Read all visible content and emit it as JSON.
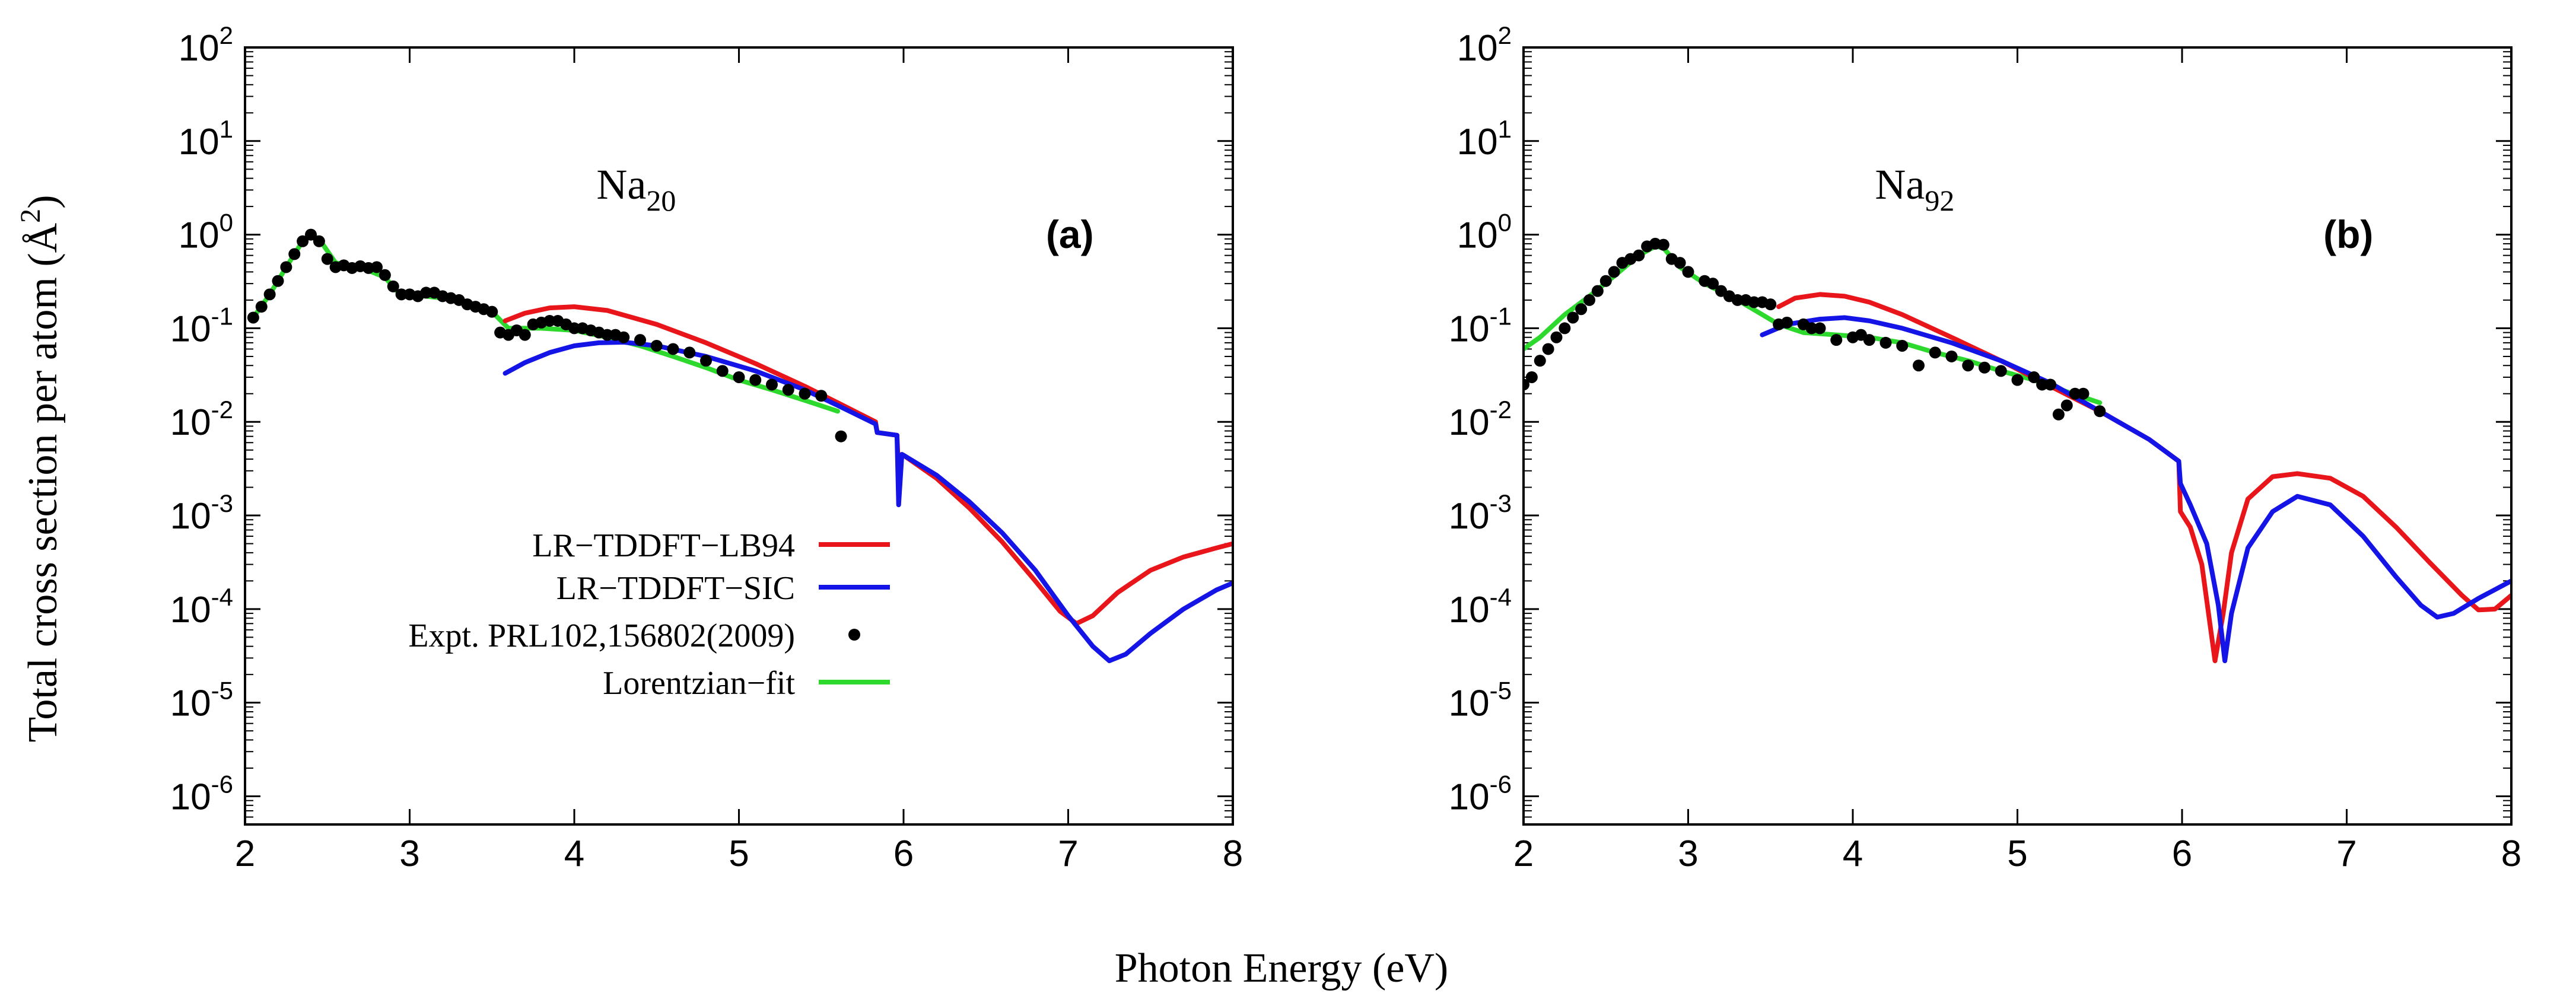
{
  "figure": {
    "shared_xlabel": "Photon Energy (eV)",
    "shared_ylabel_text": "Total cross section per atom (",
    "shared_ylabel_unit": "Å",
    "shared_ylabel_unit_sup": "2",
    "shared_ylabel_close": ")"
  },
  "colors": {
    "lb94": "#e8161a",
    "sic": "#1414e6",
    "expt": "#000000",
    "fit": "#2ed92e",
    "axis": "#000000",
    "background": "#ffffff"
  },
  "chart_data": [
    {
      "id": "a",
      "type": "line",
      "yscale": "log",
      "xlim": [
        2,
        8
      ],
      "ylim": [
        5e-07,
        100
      ],
      "xticks": [
        2,
        3,
        4,
        5,
        6,
        7,
        8
      ],
      "ytick_exponents": [
        -6,
        -5,
        -4,
        -3,
        -2,
        -1,
        0,
        1,
        2
      ],
      "ytick_base": "10",
      "grid": false,
      "panel_label": "(a)",
      "cluster_label": {
        "base": "Na",
        "sub": "20"
      },
      "legend": {
        "placement": "lower-left",
        "entries": [
          {
            "label": "LR−TDDFT−LB94",
            "series": "lb94",
            "kind": "line"
          },
          {
            "label": "LR−TDDFT−SIC",
            "series": "sic",
            "kind": "line"
          },
          {
            "label": "Expt. PRL102,156802(2009)",
            "series": "expt",
            "kind": "point"
          },
          {
            "label": "Lorentzian−fit",
            "series": "fit",
            "kind": "line"
          }
        ]
      },
      "series": [
        {
          "name": "LR−TDDFT−LB94",
          "key": "lb94",
          "x": [
            3.58,
            3.7,
            3.85,
            4.0,
            4.2,
            4.5,
            4.8,
            5.1,
            5.4,
            5.6,
            5.83,
            5.84,
            5.96,
            5.965,
            6.0,
            6.2,
            6.4,
            6.6,
            6.8,
            6.95,
            7.05,
            7.15,
            7.3,
            7.5,
            7.7,
            7.9,
            8.0
          ],
          "y": [
            0.12,
            0.145,
            0.165,
            0.17,
            0.155,
            0.11,
            0.07,
            0.042,
            0.024,
            0.016,
            0.01,
            0.0077,
            0.0072,
            0.0045,
            0.0044,
            0.0025,
            0.0012,
            0.00052,
            0.0002,
            9.5e-05,
            7e-05,
            8.5e-05,
            0.00015,
            0.00026,
            0.00036,
            0.00045,
            0.0005
          ]
        },
        {
          "name": "LR−TDDFT−SIC",
          "key": "sic",
          "x": [
            3.58,
            3.7,
            3.85,
            4.0,
            4.15,
            4.3,
            4.5,
            4.8,
            5.1,
            5.4,
            5.6,
            5.83,
            5.84,
            5.96,
            5.97,
            5.99,
            6.0,
            6.2,
            6.4,
            6.6,
            6.8,
            7.0,
            7.15,
            7.25,
            7.35,
            7.5,
            7.7,
            7.9,
            8.0
          ],
          "y": [
            0.033,
            0.043,
            0.055,
            0.065,
            0.07,
            0.071,
            0.065,
            0.05,
            0.035,
            0.022,
            0.015,
            0.0095,
            0.0077,
            0.0072,
            0.0013,
            0.0045,
            0.0044,
            0.0027,
            0.0014,
            0.00065,
            0.00026,
            8.5e-05,
            4e-05,
            2.8e-05,
            3.3e-05,
            5.5e-05,
            0.0001,
            0.00016,
            0.00019
          ]
        },
        {
          "name": "Expt. PRL102,156802(2009)",
          "key": "expt",
          "marker": "circle",
          "x": [
            2.05,
            2.1,
            2.15,
            2.2,
            2.25,
            2.3,
            2.35,
            2.4,
            2.45,
            2.5,
            2.55,
            2.6,
            2.65,
            2.7,
            2.75,
            2.8,
            2.85,
            2.9,
            2.95,
            3.0,
            3.05,
            3.1,
            3.15,
            3.2,
            3.25,
            3.3,
            3.35,
            3.4,
            3.45,
            3.5,
            3.55,
            3.6,
            3.65,
            3.7,
            3.75,
            3.8,
            3.85,
            3.9,
            3.95,
            4.0,
            4.05,
            4.1,
            4.15,
            4.2,
            4.25,
            4.3,
            4.4,
            4.5,
            4.6,
            4.7,
            4.8,
            4.9,
            5.0,
            5.1,
            5.2,
            5.3,
            5.4,
            5.5,
            5.62
          ],
          "y": [
            0.13,
            0.17,
            0.23,
            0.32,
            0.45,
            0.62,
            0.85,
            1.0,
            0.85,
            0.55,
            0.45,
            0.47,
            0.44,
            0.46,
            0.44,
            0.45,
            0.37,
            0.28,
            0.23,
            0.23,
            0.22,
            0.24,
            0.24,
            0.22,
            0.21,
            0.2,
            0.18,
            0.17,
            0.16,
            0.15,
            0.09,
            0.085,
            0.095,
            0.085,
            0.11,
            0.115,
            0.12,
            0.12,
            0.11,
            0.1,
            0.1,
            0.095,
            0.09,
            0.085,
            0.085,
            0.08,
            0.075,
            0.065,
            0.06,
            0.055,
            0.045,
            0.035,
            0.03,
            0.028,
            0.025,
            0.022,
            0.02,
            0.019,
            0.007
          ]
        },
        {
          "name": "Lorentzian−fit",
          "key": "fit",
          "x": [
            2.05,
            2.15,
            2.25,
            2.35,
            2.4,
            2.45,
            2.55,
            2.7,
            2.85,
            2.95,
            3.1,
            3.3,
            3.5,
            3.6,
            3.8,
            4.0,
            4.2,
            4.4,
            4.6,
            4.8,
            5.0,
            5.2,
            5.4,
            5.6
          ],
          "y": [
            0.13,
            0.23,
            0.45,
            0.85,
            1.0,
            0.9,
            0.5,
            0.45,
            0.35,
            0.22,
            0.22,
            0.2,
            0.15,
            0.1,
            0.1,
            0.095,
            0.08,
            0.065,
            0.05,
            0.038,
            0.028,
            0.022,
            0.017,
            0.013
          ]
        }
      ]
    },
    {
      "id": "b",
      "type": "line",
      "yscale": "log",
      "xlim": [
        2,
        8
      ],
      "ylim": [
        5e-07,
        100
      ],
      "xticks": [
        2,
        3,
        4,
        5,
        6,
        7,
        8
      ],
      "ytick_exponents": [
        -6,
        -5,
        -4,
        -3,
        -2,
        -1,
        0,
        1,
        2
      ],
      "ytick_base": "10",
      "grid": false,
      "panel_label": "(b)",
      "cluster_label": {
        "base": "Na",
        "sub": "92"
      },
      "series": [
        {
          "name": "LR−TDDFT−LB94",
          "key": "lb94",
          "x": [
            3.55,
            3.65,
            3.8,
            3.95,
            4.1,
            4.3,
            4.6,
            4.9,
            5.2,
            5.5,
            5.8,
            5.98,
            5.99,
            6.05,
            6.12,
            6.2,
            6.25,
            6.3,
            6.4,
            6.55,
            6.7,
            6.9,
            7.1,
            7.3,
            7.5,
            7.7,
            7.8,
            7.9,
            8.0
          ],
          "y": [
            0.17,
            0.21,
            0.23,
            0.22,
            0.19,
            0.14,
            0.08,
            0.045,
            0.024,
            0.013,
            0.0065,
            0.0038,
            0.0011,
            0.00075,
            0.0003,
            2.8e-05,
            9e-05,
            0.0004,
            0.0015,
            0.0026,
            0.0028,
            0.0025,
            0.0016,
            0.00075,
            0.00032,
            0.00014,
            9.8e-05,
            0.0001,
            0.00014
          ]
        },
        {
          "name": "LR−TDDFT−SIC",
          "key": "sic",
          "x": [
            3.45,
            3.6,
            3.8,
            3.95,
            4.1,
            4.3,
            4.6,
            4.9,
            5.2,
            5.5,
            5.8,
            5.98,
            5.99,
            6.05,
            6.15,
            6.22,
            6.26,
            6.3,
            6.4,
            6.55,
            6.7,
            6.9,
            7.1,
            7.3,
            7.45,
            7.55,
            7.65,
            7.8,
            8.0
          ],
          "y": [
            0.085,
            0.11,
            0.125,
            0.13,
            0.12,
            0.1,
            0.07,
            0.045,
            0.026,
            0.013,
            0.0065,
            0.0038,
            0.0022,
            0.0013,
            0.0005,
            0.00011,
            2.8e-05,
            9e-05,
            0.00045,
            0.0011,
            0.0016,
            0.0013,
            0.0006,
            0.00022,
            0.00011,
            8.2e-05,
            9e-05,
            0.00013,
            0.0002
          ]
        },
        {
          "name": "Expt. PRL102,156802(2009)",
          "key": "expt",
          "marker": "circle",
          "x": [
            2.0,
            2.05,
            2.1,
            2.15,
            2.2,
            2.25,
            2.3,
            2.35,
            2.4,
            2.45,
            2.5,
            2.55,
            2.6,
            2.65,
            2.7,
            2.75,
            2.8,
            2.85,
            2.9,
            2.95,
            3.0,
            3.1,
            3.15,
            3.2,
            3.25,
            3.3,
            3.35,
            3.4,
            3.45,
            3.5,
            3.55,
            3.6,
            3.7,
            3.75,
            3.8,
            3.9,
            4.0,
            4.05,
            4.1,
            4.2,
            4.3,
            4.4,
            4.5,
            4.6,
            4.7,
            4.8,
            4.9,
            5.0,
            5.1,
            5.15,
            5.2,
            5.25,
            5.3,
            5.35,
            5.4,
            5.5
          ],
          "y": [
            0.025,
            0.03,
            0.045,
            0.06,
            0.08,
            0.1,
            0.13,
            0.16,
            0.2,
            0.25,
            0.32,
            0.4,
            0.5,
            0.55,
            0.6,
            0.75,
            0.8,
            0.78,
            0.55,
            0.5,
            0.4,
            0.32,
            0.3,
            0.25,
            0.22,
            0.2,
            0.2,
            0.19,
            0.19,
            0.18,
            0.11,
            0.115,
            0.11,
            0.1,
            0.1,
            0.075,
            0.08,
            0.085,
            0.075,
            0.07,
            0.065,
            0.04,
            0.055,
            0.05,
            0.04,
            0.038,
            0.035,
            0.028,
            0.03,
            0.025,
            0.025,
            0.012,
            0.015,
            0.02,
            0.02,
            0.013
          ]
        },
        {
          "name": "Lorentzian−fit",
          "key": "fit",
          "x": [
            2.0,
            2.1,
            2.25,
            2.4,
            2.55,
            2.7,
            2.8,
            2.85,
            2.95,
            3.1,
            3.3,
            3.45,
            3.55,
            3.7,
            3.9,
            4.1,
            4.3,
            4.5,
            4.7,
            4.9,
            5.1,
            5.3,
            5.5
          ],
          "y": [
            0.06,
            0.08,
            0.14,
            0.22,
            0.36,
            0.6,
            0.75,
            0.72,
            0.45,
            0.3,
            0.2,
            0.14,
            0.11,
            0.09,
            0.085,
            0.08,
            0.07,
            0.055,
            0.045,
            0.035,
            0.028,
            0.021,
            0.016
          ]
        }
      ]
    }
  ]
}
